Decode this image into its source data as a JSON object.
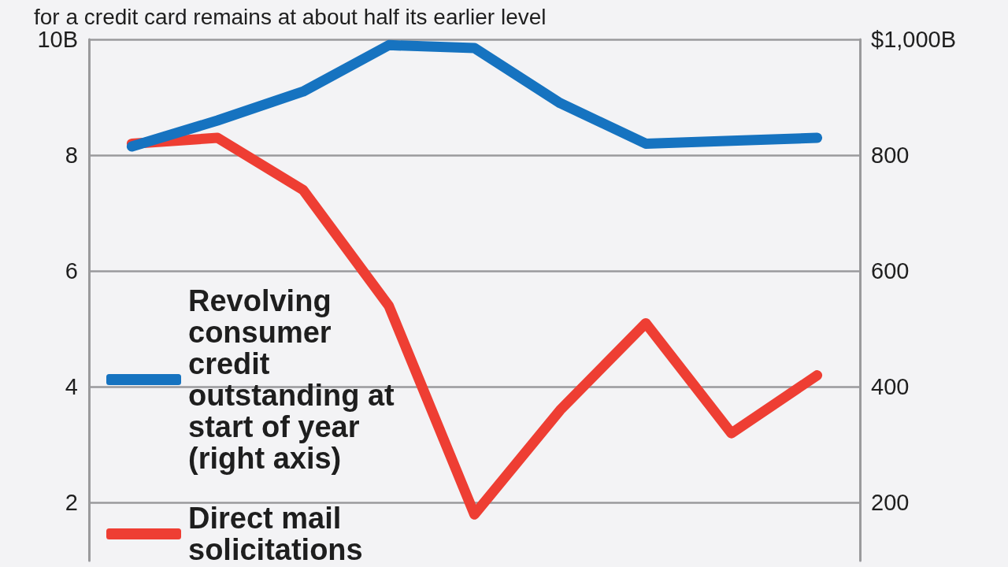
{
  "chart_data": {
    "type": "line",
    "subtitle": "for a credit card remains at about half its earlier level",
    "categories": [
      null,
      null,
      null,
      null,
      null,
      null,
      null,
      null,
      null
    ],
    "series": [
      {
        "name": "Revolving consumer credit outstanding at start of year (right axis)",
        "color": "#1673c0",
        "axis": "y2",
        "values": [
          815,
          860,
          910,
          990,
          985,
          890,
          820,
          825,
          830
        ]
      },
      {
        "name": "Direct mail solicitations",
        "color": "#ee3e33",
        "values": [
          8.2,
          8.3,
          7.4,
          5.4,
          1.8,
          3.6,
          5.1,
          3.2,
          4.2
        ]
      }
    ],
    "ylim": [
      1,
      10
    ],
    "yticks": [
      2,
      4,
      6,
      8,
      {
        "value": 10,
        "label": "10B"
      }
    ],
    "y2lim": [
      100,
      1000
    ],
    "y2ticks": [
      200,
      400,
      600,
      800,
      {
        "value": 1000,
        "label": "$1,000B"
      }
    ],
    "grid": "y",
    "legend": "bottom left"
  }
}
